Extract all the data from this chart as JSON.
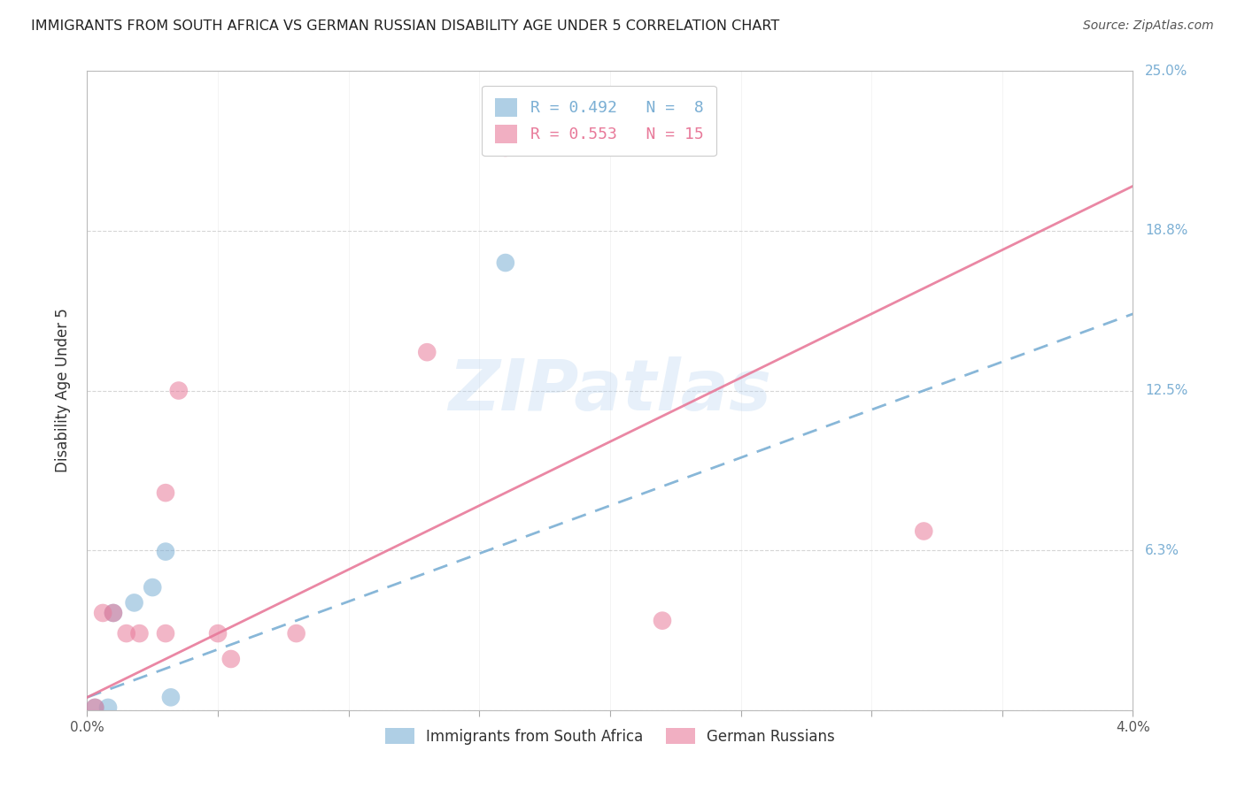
{
  "title": "IMMIGRANTS FROM SOUTH AFRICA VS GERMAN RUSSIAN DISABILITY AGE UNDER 5 CORRELATION CHART",
  "source": "Source: ZipAtlas.com",
  "ylabel": "Disability Age Under 5",
  "xlim": [
    0.0,
    0.04
  ],
  "ylim": [
    0.0,
    0.25
  ],
  "xtick_positions": [
    0.0,
    0.005,
    0.01,
    0.015,
    0.02,
    0.025,
    0.03,
    0.035,
    0.04
  ],
  "xticklabels": [
    "0.0%",
    "",
    "",
    "",
    "",
    "",
    "",
    "",
    "4.0%"
  ],
  "ytick_vals": [
    0.0,
    0.0625,
    0.125,
    0.1875,
    0.25
  ],
  "ytick_labels": [
    "0.0%",
    "6.3%",
    "12.5%",
    "18.8%",
    "25.0%"
  ],
  "gridline_color": "#cccccc",
  "background_color": "#ffffff",
  "blue_color": "#7bafd4",
  "pink_color": "#e87a9a",
  "blue_scatter_x": [
    0.0003,
    0.0008,
    0.001,
    0.0018,
    0.0025,
    0.003,
    0.0032,
    0.016
  ],
  "blue_scatter_y": [
    0.001,
    0.001,
    0.038,
    0.042,
    0.048,
    0.062,
    0.005,
    0.175
  ],
  "pink_scatter_x": [
    0.0003,
    0.0006,
    0.001,
    0.0015,
    0.002,
    0.003,
    0.003,
    0.0035,
    0.005,
    0.0055,
    0.008,
    0.013,
    0.016,
    0.022,
    0.032
  ],
  "pink_scatter_y": [
    0.001,
    0.038,
    0.038,
    0.03,
    0.03,
    0.03,
    0.085,
    0.125,
    0.03,
    0.02,
    0.03,
    0.14,
    0.22,
    0.035,
    0.07
  ],
  "blue_line_x": [
    0.0,
    0.04
  ],
  "blue_line_y": [
    0.005,
    0.155
  ],
  "pink_line_x": [
    0.0,
    0.04
  ],
  "pink_line_y": [
    0.005,
    0.205
  ],
  "blue_r": "R = 0.492",
  "blue_n": "N =  8",
  "pink_r": "R = 0.553",
  "pink_n": "N = 15",
  "watermark_text": "ZIPatlas",
  "legend_label_blue": "Immigrants from South Africa",
  "legend_label_pink": "German Russians"
}
